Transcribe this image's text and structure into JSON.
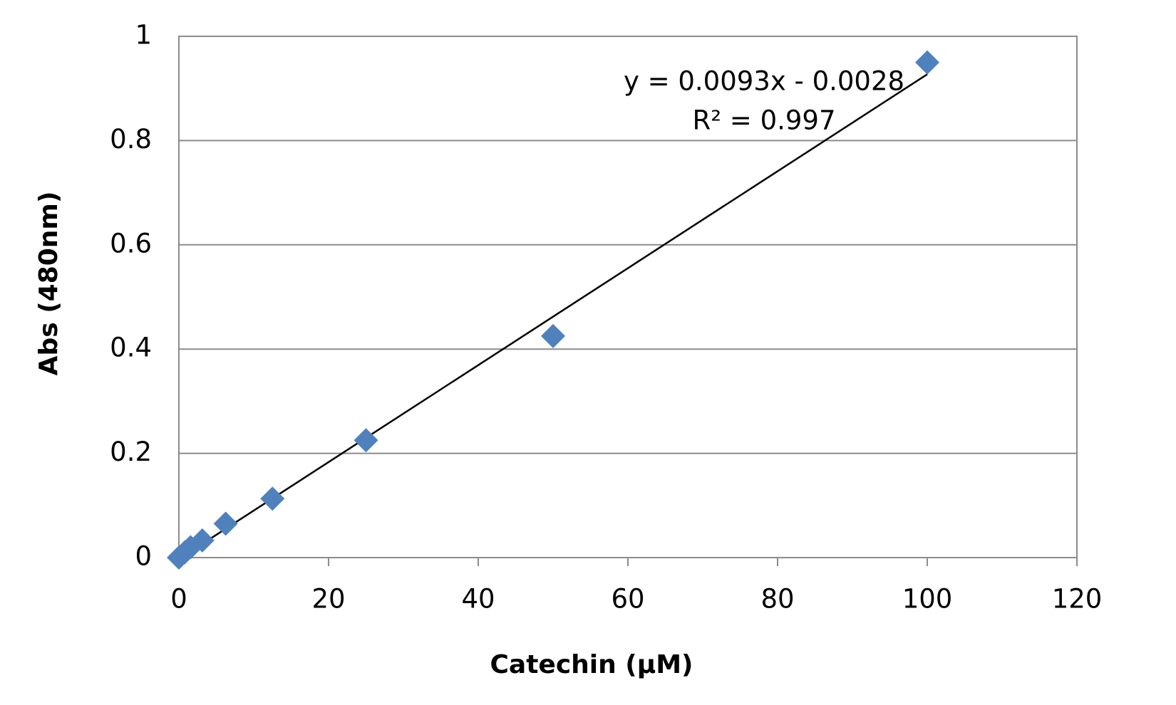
{
  "chart_data": {
    "type": "scatter",
    "x_label": "Catechin (µM)",
    "y_label": "Abs (480nm)",
    "series": [
      {
        "color": "#4f81bd",
        "x": [
          0,
          0.78,
          1.56,
          3.125,
          6.25,
          12.5,
          25,
          50,
          100
        ],
        "values": [
          0,
          0.01,
          0.02,
          0.033,
          0.065,
          0.113,
          0.225,
          0.425,
          0.95
        ]
      }
    ],
    "trendline": {
      "slope": 0.0093,
      "intercept": -0.0028,
      "color": "#000000",
      "equation": "y = 0.0093x - 0.0028",
      "r2": "R² = 0.997"
    },
    "xlim": [
      0,
      120
    ],
    "xticks": [
      0,
      20,
      40,
      60,
      80,
      100,
      120
    ],
    "ylim": [
      0,
      1
    ],
    "yticks": [
      0,
      0.2,
      0.4,
      0.6,
      0.8,
      1
    ],
    "grid": true
  }
}
